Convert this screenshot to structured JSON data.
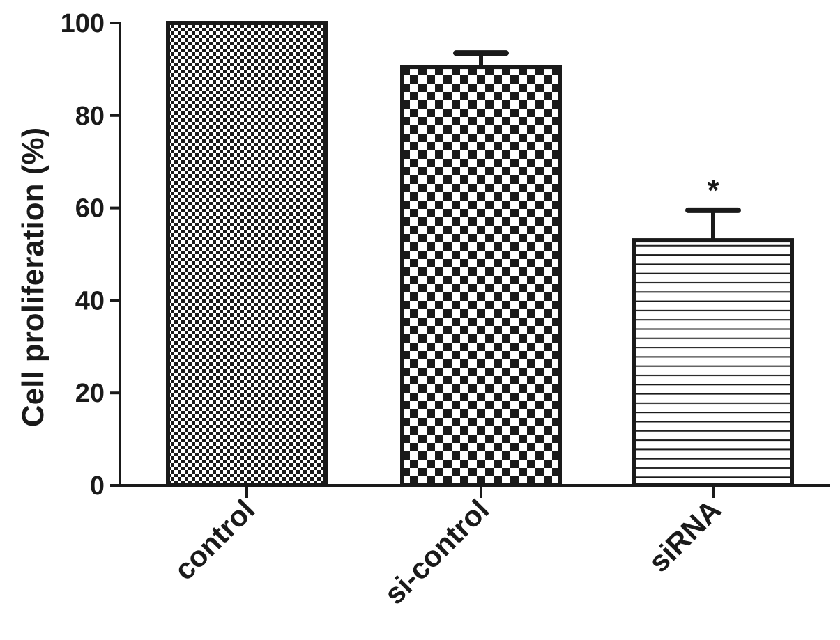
{
  "chart_data": {
    "type": "bar",
    "categories": [
      "control",
      "si-control",
      "siRNA"
    ],
    "values": [
      100,
      90.5,
      53
    ],
    "error_upper": [
      0,
      3,
      6.5
    ],
    "annotations": [
      "",
      "",
      "*"
    ],
    "patterns": [
      "fine-checker",
      "coarse-checker",
      "horizontal-lines"
    ],
    "title": "",
    "xlabel": "",
    "ylabel": "Cell proliferation (%)",
    "ylim": [
      0,
      100
    ],
    "yticks": [
      0,
      20,
      40,
      60,
      80,
      100
    ],
    "grid": false,
    "colors": {
      "ink": "#1a1a1a",
      "background": "#ffffff"
    }
  }
}
